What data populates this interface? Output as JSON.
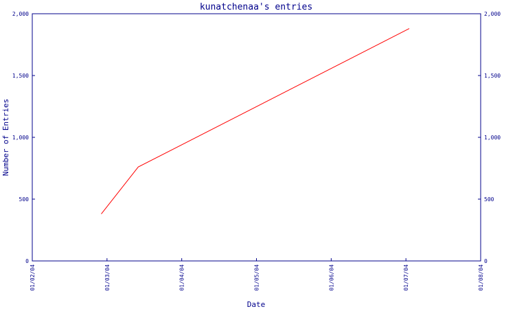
{
  "chart_data": {
    "type": "line",
    "title": "kunatchenaa's entries",
    "xlabel": "Date",
    "ylabel": "Number of Entries",
    "x_ticks": [
      "01/02/04",
      "01/03/04",
      "01/04/04",
      "01/05/04",
      "01/06/04",
      "01/07/04",
      "01/08/04"
    ],
    "y_ticks": [
      "0",
      "500",
      "1,000",
      "1,500",
      "2,000"
    ],
    "ylim": [
      0,
      2000
    ],
    "xlim": [
      "2004-02-01",
      "2004-08-01"
    ],
    "grid": false,
    "series": [
      {
        "color": "#ff0000",
        "x": [
          "2004-02-29",
          "2004-03-15",
          "2004-07-03"
        ],
        "values": [
          380,
          760,
          1880
        ]
      }
    ]
  }
}
